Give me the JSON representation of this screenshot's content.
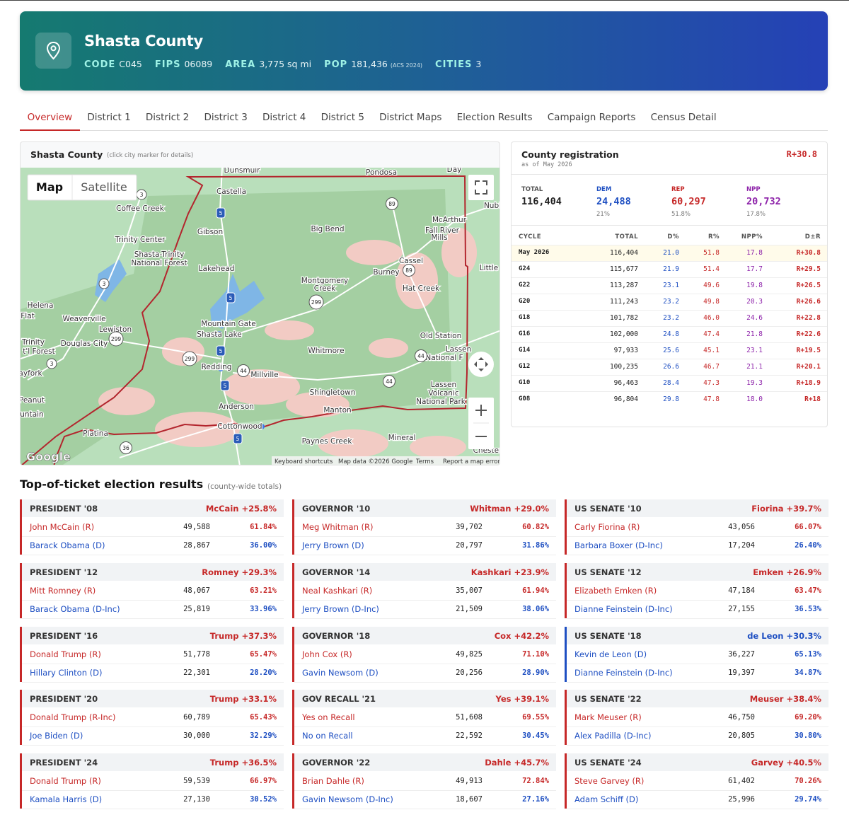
{
  "header": {
    "title": "Shasta County",
    "stats": [
      {
        "label": "CODE",
        "value": "C045"
      },
      {
        "label": "FIPS",
        "value": "06089"
      },
      {
        "label": "AREA",
        "value": "3,775 sq mi"
      },
      {
        "label": "POP",
        "value": "181,436",
        "note": "(ACS 2024)"
      },
      {
        "label": "CITIES",
        "value": "3"
      }
    ]
  },
  "tabs": {
    "items": [
      "Overview",
      "District 1",
      "District 2",
      "District 3",
      "District 4",
      "District 5",
      "District Maps",
      "Election Results",
      "Campaign Reports",
      "Census Detail"
    ],
    "active": 0
  },
  "map": {
    "title": "Shasta County",
    "hint": "(click city marker for details)",
    "buttons": [
      "Map",
      "Satellite"
    ],
    "labels": [
      "Dunsmuir",
      "Pondosa",
      "Day",
      "Castella",
      "Coffee Creek",
      "Nubi",
      "Gibson",
      "Big Bend",
      "McArthur",
      "Fall River",
      "Mills",
      "Trinity Center",
      "Shasta-Trinity",
      "National Forest",
      "Cassel",
      "Little",
      "Lakehead",
      "Burney",
      "Montgomery",
      "Creek",
      "Hat Creek",
      "Helena",
      "Flat",
      "Weaverville",
      "Mountain Gate",
      "Lewiston",
      "Shasta Lake",
      "Trinity",
      "t'l Forest",
      "Douglas City",
      "Old Station",
      "Whitmore",
      "Lassen",
      "National F",
      "Redding",
      "Millville",
      "ayfork",
      "Shingletown",
      "Lassen",
      "Volcanic",
      "National Park",
      "Peanut",
      "Anderson",
      "Manton",
      "untain",
      "Cottonwood",
      "Platina",
      "Mineral",
      "Paynes Creek",
      "Chester"
    ],
    "shields": [
      "3",
      "3",
      "3",
      "89",
      "89",
      "5",
      "5",
      "5",
      "5",
      "5",
      "299",
      "299",
      "299",
      "44",
      "44",
      "44",
      "36"
    ],
    "brand": "Google",
    "footer": [
      "Keyboard shortcuts",
      "Map data ©2026 Google",
      "Terms",
      "Report a map error"
    ]
  },
  "registration": {
    "title": "County registration",
    "subtitle": "as of May 2026",
    "lean": "R+30.8",
    "summary": [
      {
        "label": "TOTAL",
        "value": "116,404"
      },
      {
        "label": "DEM",
        "value": "24,488",
        "share": "21%",
        "color": "#1e4fc2"
      },
      {
        "label": "REP",
        "value": "60,297",
        "share": "51.8%",
        "color": "#c62828"
      },
      {
        "label": "NPP",
        "value": "20,732",
        "share": "17.8%",
        "color": "#8e24aa"
      }
    ],
    "columns": [
      "CYCLE",
      "TOTAL",
      "D%",
      "R%",
      "NPP%",
      "D±R"
    ],
    "rows": [
      [
        "May 2026",
        "116,404",
        "21.0",
        "51.8",
        "17.8",
        "R+30.8"
      ],
      [
        "G24",
        "115,677",
        "21.9",
        "51.4",
        "17.7",
        "R+29.5"
      ],
      [
        "G22",
        "113,287",
        "23.1",
        "49.6",
        "19.8",
        "R+26.5"
      ],
      [
        "G20",
        "111,243",
        "23.2",
        "49.8",
        "20.3",
        "R+26.6"
      ],
      [
        "G18",
        "101,782",
        "23.2",
        "46.0",
        "24.6",
        "R+22.8"
      ],
      [
        "G16",
        "102,000",
        "24.8",
        "47.4",
        "21.8",
        "R+22.6"
      ],
      [
        "G14",
        "97,933",
        "25.6",
        "45.1",
        "23.1",
        "R+19.5"
      ],
      [
        "G12",
        "100,235",
        "26.6",
        "46.7",
        "21.1",
        "R+20.1"
      ],
      [
        "G10",
        "96,463",
        "28.4",
        "47.3",
        "19.3",
        "R+18.9"
      ],
      [
        "G08",
        "96,804",
        "29.8",
        "47.8",
        "18.0",
        "R+18"
      ]
    ]
  },
  "elections": {
    "title": "Top-of-ticket election results",
    "note": "(county-wide totals)",
    "races": [
      {
        "title": "PRESIDENT '08",
        "margin": "McCain +25.8%",
        "color": "#c62828",
        "candidates": [
          {
            "name": "John McCain (R)",
            "votes": "49,588",
            "pct": "61.84%",
            "color": "#c62828"
          },
          {
            "name": "Barack Obama (D)",
            "votes": "28,867",
            "pct": "36.00%",
            "color": "#1e4fc2"
          }
        ]
      },
      {
        "title": "GOVERNOR '10",
        "margin": "Whitman +29.0%",
        "color": "#c62828",
        "candidates": [
          {
            "name": "Meg Whitman (R)",
            "votes": "39,702",
            "pct": "60.82%",
            "color": "#c62828"
          },
          {
            "name": "Jerry Brown (D)",
            "votes": "20,797",
            "pct": "31.86%",
            "color": "#1e4fc2"
          }
        ]
      },
      {
        "title": "US SENATE '10",
        "margin": "Fiorina +39.7%",
        "color": "#c62828",
        "candidates": [
          {
            "name": "Carly Fiorina (R)",
            "votes": "43,056",
            "pct": "66.07%",
            "color": "#c62828"
          },
          {
            "name": "Barbara Boxer (D-Inc)",
            "votes": "17,204",
            "pct": "26.40%",
            "color": "#1e4fc2"
          }
        ]
      },
      {
        "title": "PRESIDENT '12",
        "margin": "Romney +29.3%",
        "color": "#c62828",
        "candidates": [
          {
            "name": "Mitt Romney (R)",
            "votes": "48,067",
            "pct": "63.21%",
            "color": "#c62828"
          },
          {
            "name": "Barack Obama (D-Inc)",
            "votes": "25,819",
            "pct": "33.96%",
            "color": "#1e4fc2"
          }
        ]
      },
      {
        "title": "GOVERNOR '14",
        "margin": "Kashkari +23.9%",
        "color": "#c62828",
        "candidates": [
          {
            "name": "Neal Kashkari (R)",
            "votes": "35,007",
            "pct": "61.94%",
            "color": "#c62828"
          },
          {
            "name": "Jerry Brown (D-Inc)",
            "votes": "21,509",
            "pct": "38.06%",
            "color": "#1e4fc2"
          }
        ]
      },
      {
        "title": "US SENATE '12",
        "margin": "Emken +26.9%",
        "color": "#c62828",
        "candidates": [
          {
            "name": "Elizabeth Emken (R)",
            "votes": "47,184",
            "pct": "63.47%",
            "color": "#c62828"
          },
          {
            "name": "Dianne Feinstein (D-Inc)",
            "votes": "27,155",
            "pct": "36.53%",
            "color": "#1e4fc2"
          }
        ]
      },
      {
        "title": "PRESIDENT '16",
        "margin": "Trump +37.3%",
        "color": "#c62828",
        "candidates": [
          {
            "name": "Donald Trump (R)",
            "votes": "51,778",
            "pct": "65.47%",
            "color": "#c62828"
          },
          {
            "name": "Hillary Clinton (D)",
            "votes": "22,301",
            "pct": "28.20%",
            "color": "#1e4fc2"
          }
        ]
      },
      {
        "title": "GOVERNOR '18",
        "margin": "Cox +42.2%",
        "color": "#c62828",
        "candidates": [
          {
            "name": "John Cox (R)",
            "votes": "49,825",
            "pct": "71.10%",
            "color": "#c62828"
          },
          {
            "name": "Gavin Newsom (D)",
            "votes": "20,256",
            "pct": "28.90%",
            "color": "#1e4fc2"
          }
        ]
      },
      {
        "title": "US SENATE '18",
        "margin": "de Leon +30.3%",
        "color": "#1e4fc2",
        "candidates": [
          {
            "name": "Kevin de Leon (D)",
            "votes": "36,227",
            "pct": "65.13%",
            "color": "#1e4fc2"
          },
          {
            "name": "Dianne Feinstein (D-Inc)",
            "votes": "19,397",
            "pct": "34.87%",
            "color": "#1e4fc2"
          }
        ]
      },
      {
        "title": "PRESIDENT '20",
        "margin": "Trump +33.1%",
        "color": "#c62828",
        "candidates": [
          {
            "name": "Donald Trump (R-Inc)",
            "votes": "60,789",
            "pct": "65.43%",
            "color": "#c62828"
          },
          {
            "name": "Joe Biden (D)",
            "votes": "30,000",
            "pct": "32.29%",
            "color": "#1e4fc2"
          }
        ]
      },
      {
        "title": "GOV RECALL '21",
        "margin": "Yes +39.1%",
        "color": "#c62828",
        "candidates": [
          {
            "name": "Yes on Recall",
            "votes": "51,608",
            "pct": "69.55%",
            "color": "#c62828"
          },
          {
            "name": "No on Recall",
            "votes": "22,592",
            "pct": "30.45%",
            "color": "#1e4fc2"
          }
        ]
      },
      {
        "title": "US SENATE '22",
        "margin": "Meuser +38.4%",
        "color": "#c62828",
        "candidates": [
          {
            "name": "Mark Meuser (R)",
            "votes": "46,750",
            "pct": "69.20%",
            "color": "#c62828"
          },
          {
            "name": "Alex Padilla (D-Inc)",
            "votes": "20,805",
            "pct": "30.80%",
            "color": "#1e4fc2"
          }
        ]
      },
      {
        "title": "PRESIDENT '24",
        "margin": "Trump +36.5%",
        "color": "#c62828",
        "candidates": [
          {
            "name": "Donald Trump (R)",
            "votes": "59,539",
            "pct": "66.97%",
            "color": "#c62828"
          },
          {
            "name": "Kamala Harris (D)",
            "votes": "27,130",
            "pct": "30.52%",
            "color": "#1e4fc2"
          }
        ]
      },
      {
        "title": "GOVERNOR '22",
        "margin": "Dahle +45.7%",
        "color": "#c62828",
        "candidates": [
          {
            "name": "Brian Dahle (R)",
            "votes": "49,913",
            "pct": "72.84%",
            "color": "#c62828"
          },
          {
            "name": "Gavin Newsom (D-Inc)",
            "votes": "18,607",
            "pct": "27.16%",
            "color": "#1e4fc2"
          }
        ]
      },
      {
        "title": "US SENATE '24",
        "margin": "Garvey +40.5%",
        "color": "#c62828",
        "candidates": [
          {
            "name": "Steve Garvey (R)",
            "votes": "61,402",
            "pct": "70.26%",
            "color": "#c62828"
          },
          {
            "name": "Adam Schiff (D)",
            "votes": "25,996",
            "pct": "29.74%",
            "color": "#1e4fc2"
          }
        ]
      }
    ]
  }
}
